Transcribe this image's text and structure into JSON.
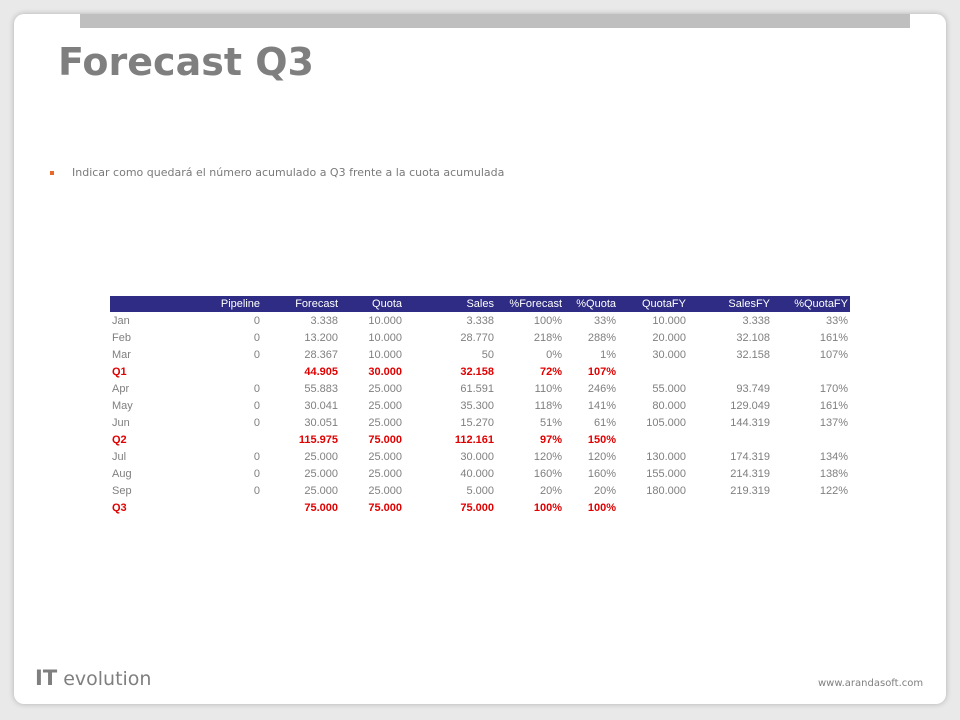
{
  "slide": {
    "title": "Forecast Q3",
    "bullet": "Indicar como quedará el número acumulado a Q3 frente a la cuota acumulada"
  },
  "table": {
    "headers": [
      "",
      "Pipeline",
      "Forecast",
      "Quota",
      "Sales",
      "%Forecast",
      "%Quota",
      "QuotaFY",
      "SalesFY",
      "%QuotaFY"
    ],
    "rows": [
      {
        "label": "Jan",
        "summary": false,
        "cells": [
          "0",
          "3.338",
          "10.000",
          "3.338",
          "100%",
          "33%",
          "10.000",
          "3.338",
          "33%"
        ]
      },
      {
        "label": "Feb",
        "summary": false,
        "cells": [
          "0",
          "13.200",
          "10.000",
          "28.770",
          "218%",
          "288%",
          "20.000",
          "32.108",
          "161%"
        ]
      },
      {
        "label": "Mar",
        "summary": false,
        "cells": [
          "0",
          "28.367",
          "10.000",
          "50",
          "0%",
          "1%",
          "30.000",
          "32.158",
          "107%"
        ]
      },
      {
        "label": "Q1",
        "summary": true,
        "cells": [
          "",
          "44.905",
          "30.000",
          "32.158",
          "72%",
          "107%",
          "",
          "",
          ""
        ]
      },
      {
        "label": "Apr",
        "summary": false,
        "cells": [
          "0",
          "55.883",
          "25.000",
          "61.591",
          "110%",
          "246%",
          "55.000",
          "93.749",
          "170%"
        ]
      },
      {
        "label": "May",
        "summary": false,
        "cells": [
          "0",
          "30.041",
          "25.000",
          "35.300",
          "118%",
          "141%",
          "80.000",
          "129.049",
          "161%"
        ]
      },
      {
        "label": "Jun",
        "summary": false,
        "cells": [
          "0",
          "30.051",
          "25.000",
          "15.270",
          "51%",
          "61%",
          "105.000",
          "144.319",
          "137%"
        ]
      },
      {
        "label": "Q2",
        "summary": true,
        "cells": [
          "",
          "115.975",
          "75.000",
          "112.161",
          "97%",
          "150%",
          "",
          "",
          ""
        ]
      },
      {
        "label": "Jul",
        "summary": false,
        "cells": [
          "0",
          "25.000",
          "25.000",
          "30.000",
          "120%",
          "120%",
          "130.000",
          "174.319",
          "134%"
        ]
      },
      {
        "label": "Aug",
        "summary": false,
        "cells": [
          "0",
          "25.000",
          "25.000",
          "40.000",
          "160%",
          "160%",
          "155.000",
          "214.319",
          "138%"
        ]
      },
      {
        "label": "Sep",
        "summary": false,
        "cells": [
          "0",
          "25.000",
          "25.000",
          "5.000",
          "20%",
          "20%",
          "180.000",
          "219.319",
          "122%"
        ]
      },
      {
        "label": "Q3",
        "summary": true,
        "cells": [
          "",
          "75.000",
          "75.000",
          "75.000",
          "100%",
          "100%",
          "",
          "",
          ""
        ]
      }
    ]
  },
  "footer": {
    "logo_bold": "IT",
    "logo_text": "evolution",
    "url": "www.arandasoft.com"
  },
  "colors": {
    "title": "#7f7f7f",
    "bullet": "#e8682a",
    "header_bg": "#2e2c84",
    "summary_text": "#e00000"
  }
}
